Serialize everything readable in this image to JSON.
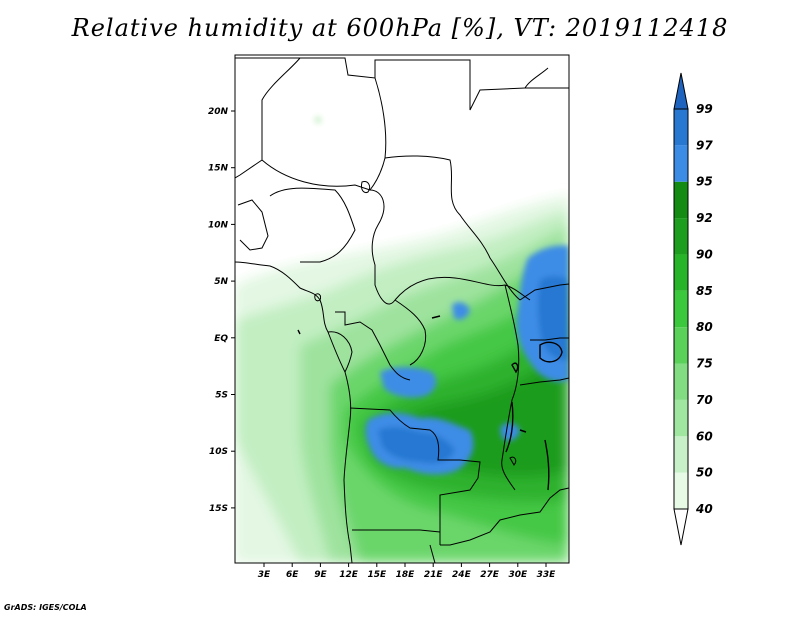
{
  "title": "Relative humidity at 600hPa [%], VT: 2019112418",
  "credit": "GrADS: IGES/COLA",
  "map": {
    "lat_labels": [
      "20N",
      "15N",
      "10N",
      "5N",
      "EQ",
      "5S",
      "10S",
      "15S"
    ],
    "lon_labels": [
      "3E",
      "6E",
      "9E",
      "12E",
      "15E",
      "18E",
      "21E",
      "24E",
      "27E",
      "30E",
      "33E"
    ]
  },
  "colorbar": {
    "levels": [
      "40",
      "50",
      "60",
      "70",
      "75",
      "80",
      "85",
      "90",
      "92",
      "95",
      "97",
      "99"
    ],
    "colors": [
      "#ffffff",
      "#e6fae6",
      "#c8f0c8",
      "#a0e6a0",
      "#82dc82",
      "#5ad25a",
      "#3cc83c",
      "#28b428",
      "#1e9e1e",
      "#148c14",
      "#3c8ce6",
      "#2878d2",
      "#1e64be"
    ]
  }
}
